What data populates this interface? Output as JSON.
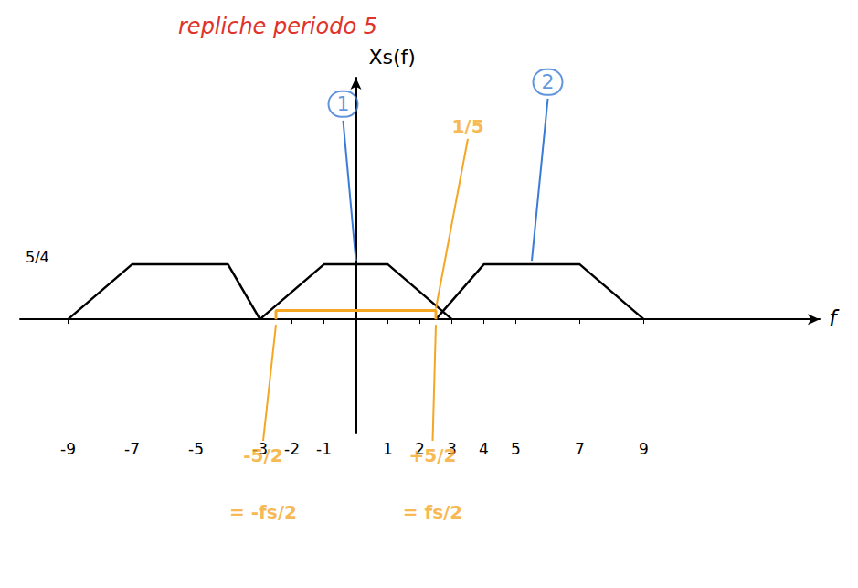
{
  "chart_data": {
    "type": "line",
    "title": "repliche periodo 5",
    "x_label": "f",
    "y_label": "Xs(f)",
    "xlim": [
      -10.5,
      14.5
    ],
    "xticks": [
      -9,
      -7,
      -5,
      -3,
      -2,
      -1,
      1,
      2,
      3,
      4,
      5,
      7,
      9
    ],
    "ylim": [
      -2.6,
      5.5
    ],
    "yticks": [
      {
        "value": 1.25,
        "label": "5/4"
      }
    ],
    "grid": false,
    "series": [
      {
        "color": "#000000",
        "x": [
          -9,
          -7,
          -4,
          -3
        ],
        "values": [
          0,
          1.25,
          1.25,
          0
        ]
      },
      {
        "color": "#000000",
        "x": [
          -3,
          -1,
          1,
          3
        ],
        "values": [
          0,
          1.25,
          1.25,
          0
        ]
      },
      {
        "color": "#000000",
        "x": [
          2.5,
          4,
          7,
          9
        ],
        "values": [
          0,
          1.25,
          1.25,
          0
        ]
      },
      {
        "color": "#f5a623",
        "x": [
          -2.5,
          -2.5,
          2.5,
          2.5
        ],
        "values": [
          0,
          0.2,
          0.2,
          0
        ]
      }
    ],
    "annotations": [
      {
        "text": "1",
        "x": -0.4,
        "y": 4.9
      },
      {
        "text": "2",
        "x": 6.0,
        "y": 5.4
      },
      {
        "text": "1/5",
        "x": 3.5,
        "y": 4.4
      },
      {
        "text": "-5/2",
        "x": -2.9,
        "y": -3.1
      },
      {
        "text": "= -fs/2",
        "x": -2.9,
        "y": -4.4
      },
      {
        "text": "+5/2",
        "x": 2.4,
        "y": -3.1
      },
      {
        "text": "= fs/2",
        "x": 2.4,
        "y": -4.4
      }
    ]
  }
}
